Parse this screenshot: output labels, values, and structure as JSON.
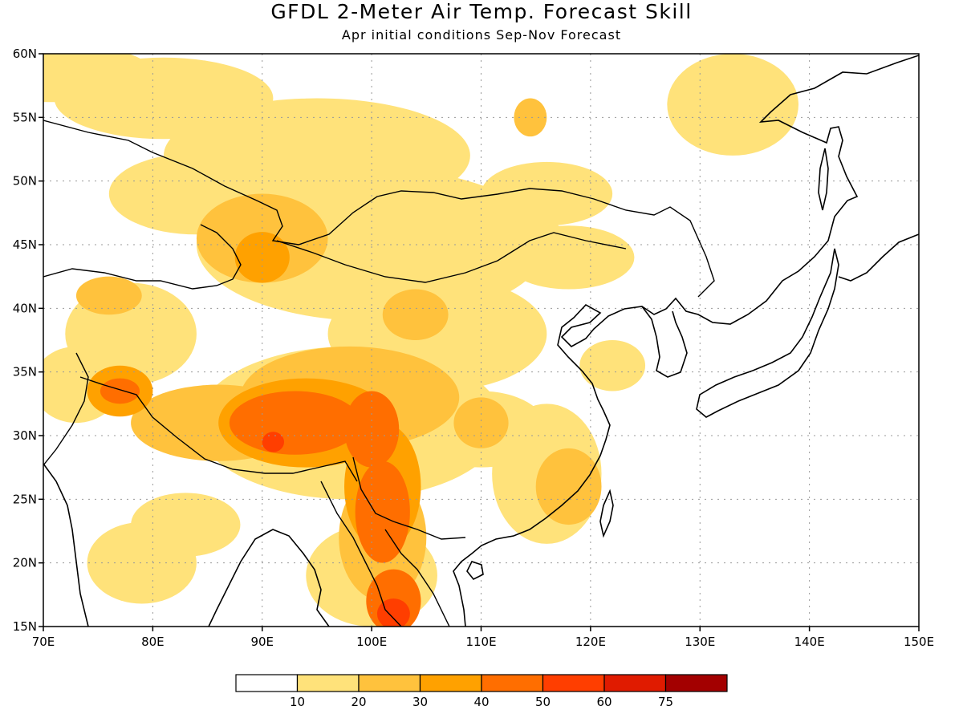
{
  "header": {
    "title": "GFDL 2-Meter Air Temp. Forecast Skill",
    "subtitle": "Apr initial conditions  Sep-Nov Forecast"
  },
  "axes": {
    "lon_min": 70,
    "lon_max": 150,
    "lat_min": 15,
    "lat_max": 60,
    "lon_ticks": [
      {
        "value": 70,
        "label": "70E"
      },
      {
        "value": 80,
        "label": "80E"
      },
      {
        "value": 90,
        "label": "90E"
      },
      {
        "value": 100,
        "label": "100E"
      },
      {
        "value": 110,
        "label": "110E"
      },
      {
        "value": 120,
        "label": "120E"
      },
      {
        "value": 130,
        "label": "130E"
      },
      {
        "value": 140,
        "label": "140E"
      },
      {
        "value": 150,
        "label": "150E"
      }
    ],
    "lat_ticks": [
      {
        "value": 60,
        "label": "60N"
      },
      {
        "value": 55,
        "label": "55N"
      },
      {
        "value": 50,
        "label": "50N"
      },
      {
        "value": 45,
        "label": "45N"
      },
      {
        "value": 40,
        "label": "40N"
      },
      {
        "value": 35,
        "label": "35N"
      },
      {
        "value": 30,
        "label": "30N"
      },
      {
        "value": 25,
        "label": "25N"
      },
      {
        "value": 20,
        "label": "20N"
      },
      {
        "value": 15,
        "label": "15N"
      }
    ],
    "grid": "dotted"
  },
  "colorbar": {
    "colors": [
      "#ffffff",
      "#ffe27a",
      "#ffc23d",
      "#ffa100",
      "#ff6e00",
      "#ff3e00",
      "#e01b00",
      "#a30000"
    ],
    "labels": [
      "10",
      "20",
      "30",
      "40",
      "50",
      "60",
      "75"
    ]
  },
  "skill_regions": [
    {
      "level": 1,
      "lon": 71,
      "lat": 58.5,
      "r_lon": 9,
      "r_lat": 2.3
    },
    {
      "level": 1,
      "lon": 81,
      "lat": 56.5,
      "r_lon": 10,
      "r_lat": 3.2
    },
    {
      "level": 1,
      "lon": 95,
      "lat": 52,
      "r_lon": 14,
      "r_lat": 4.5
    },
    {
      "level": 1,
      "lon": 84,
      "lat": 49,
      "r_lon": 8,
      "r_lat": 3.2
    },
    {
      "level": 1,
      "lon": 100,
      "lat": 45,
      "r_lon": 16,
      "r_lat": 6
    },
    {
      "level": 1,
      "lon": 110,
      "lat": 45,
      "r_lon": 8,
      "r_lat": 3.2
    },
    {
      "level": 1,
      "lon": 118,
      "lat": 44,
      "r_lon": 6,
      "r_lat": 2.5
    },
    {
      "level": 1,
      "lon": 133,
      "lat": 56,
      "r_lon": 6,
      "r_lat": 4
    },
    {
      "level": 1,
      "lon": 116,
      "lat": 49,
      "r_lon": 6,
      "r_lat": 2.5
    },
    {
      "level": 1,
      "lon": 106,
      "lat": 38,
      "r_lon": 10,
      "r_lat": 4.5
    },
    {
      "level": 1,
      "lon": 98,
      "lat": 31,
      "r_lon": 14,
      "r_lat": 6
    },
    {
      "level": 1,
      "lon": 110,
      "lat": 30.5,
      "r_lon": 6,
      "r_lat": 3
    },
    {
      "level": 1,
      "lon": 116,
      "lat": 27,
      "r_lon": 5,
      "r_lat": 5.5
    },
    {
      "level": 1,
      "lon": 78,
      "lat": 38,
      "r_lon": 6,
      "r_lat": 4
    },
    {
      "level": 1,
      "lon": 73,
      "lat": 34,
      "r_lon": 4,
      "r_lat": 3
    },
    {
      "level": 1,
      "lon": 83,
      "lat": 23,
      "r_lon": 5,
      "r_lat": 2.5
    },
    {
      "level": 1,
      "lon": 79,
      "lat": 20,
      "r_lon": 5,
      "r_lat": 3.2
    },
    {
      "level": 1,
      "lon": 100,
      "lat": 19,
      "r_lon": 6,
      "r_lat": 4
    },
    {
      "level": 1,
      "lon": 122,
      "lat": 35.5,
      "r_lon": 3,
      "r_lat": 2
    },
    {
      "level": 2,
      "lon": 90,
      "lat": 45.5,
      "r_lon": 6,
      "r_lat": 3.5
    },
    {
      "level": 2,
      "lon": 98,
      "lat": 33,
      "r_lon": 10,
      "r_lat": 4
    },
    {
      "level": 2,
      "lon": 86,
      "lat": 31,
      "r_lon": 8,
      "r_lat": 3
    },
    {
      "level": 2,
      "lon": 104,
      "lat": 39.5,
      "r_lon": 3,
      "r_lat": 2
    },
    {
      "level": 2,
      "lon": 118,
      "lat": 26,
      "r_lon": 3,
      "r_lat": 3
    },
    {
      "level": 2,
      "lon": 110,
      "lat": 31,
      "r_lon": 2.5,
      "r_lat": 2
    },
    {
      "level": 2,
      "lon": 101,
      "lat": 22,
      "r_lon": 4,
      "r_lat": 5
    },
    {
      "level": 2,
      "lon": 76,
      "lat": 41,
      "r_lon": 3,
      "r_lat": 1.5
    },
    {
      "level": 2,
      "lon": 114.5,
      "lat": 55,
      "r_lon": 1.5,
      "r_lat": 1.5
    },
    {
      "level": 3,
      "lon": 94,
      "lat": 31,
      "r_lon": 8,
      "r_lat": 3.5
    },
    {
      "level": 3,
      "lon": 101,
      "lat": 26,
      "r_lon": 3.5,
      "r_lat": 5
    },
    {
      "level": 3,
      "lon": 90,
      "lat": 44,
      "r_lon": 2.5,
      "r_lat": 2
    },
    {
      "level": 3,
      "lon": 77,
      "lat": 33.5,
      "r_lon": 3,
      "r_lat": 2
    },
    {
      "level": 4,
      "lon": 93,
      "lat": 31,
      "r_lon": 6,
      "r_lat": 2.5
    },
    {
      "level": 4,
      "lon": 100,
      "lat": 30.5,
      "r_lon": 2.5,
      "r_lat": 3
    },
    {
      "level": 4,
      "lon": 101,
      "lat": 24,
      "r_lon": 2.5,
      "r_lat": 4
    },
    {
      "level": 4,
      "lon": 102,
      "lat": 17,
      "r_lon": 2.5,
      "r_lat": 2.5
    },
    {
      "level": 4,
      "lon": 77,
      "lat": 33.5,
      "r_lon": 1.8,
      "r_lat": 1
    },
    {
      "level": 5,
      "lon": 91,
      "lat": 29.5,
      "r_lon": 1,
      "r_lat": 0.8
    },
    {
      "level": 5,
      "lon": 102,
      "lat": 16,
      "r_lon": 1.5,
      "r_lat": 1.2
    }
  ]
}
